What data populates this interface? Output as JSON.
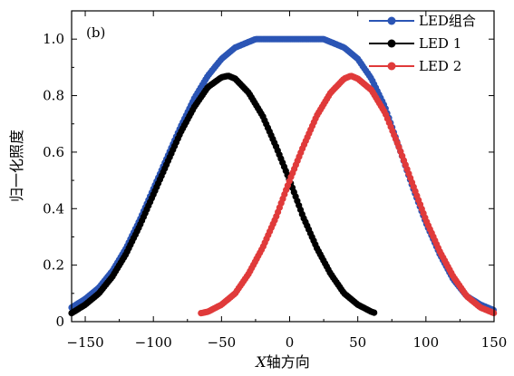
{
  "chart_data": {
    "type": "line",
    "panel_label": "(b)",
    "xlabel_italic": "X",
    "xlabel_rest": "轴方向",
    "ylabel": "归一化照度",
    "xlim": [
      -160,
      150
    ],
    "ylim": [
      0,
      1.1
    ],
    "x_ticks": [
      -150,
      -100,
      -50,
      0,
      50,
      100,
      150
    ],
    "x_tick_labels": [
      "−150",
      "−100",
      "−50",
      "0",
      "50",
      "100",
      "150"
    ],
    "y_ticks": [
      0,
      0.2,
      0.4,
      0.6,
      0.8,
      1.0
    ],
    "y_tick_labels": [
      "0",
      "0.2",
      "0.4",
      "0.6",
      "0.8",
      "1.0"
    ],
    "grid": false,
    "legend_position": "top-right",
    "series": [
      {
        "name": "LED组合",
        "color": "#2b55b5",
        "x": [
          -160,
          -150,
          -140,
          -130,
          -120,
          -110,
          -100,
          -90,
          -80,
          -70,
          -60,
          -50,
          -40,
          -30,
          -25,
          -20,
          -10,
          0,
          10,
          20,
          25,
          30,
          40,
          50,
          60,
          70,
          80,
          90,
          100,
          110,
          120,
          130,
          140,
          150
        ],
        "y": [
          0.05,
          0.08,
          0.12,
          0.18,
          0.26,
          0.36,
          0.47,
          0.58,
          0.69,
          0.79,
          0.87,
          0.93,
          0.97,
          0.99,
          1.0,
          1.0,
          1.0,
          1.0,
          1.0,
          1.0,
          1.0,
          0.99,
          0.97,
          0.93,
          0.86,
          0.76,
          0.62,
          0.48,
          0.35,
          0.24,
          0.15,
          0.09,
          0.06,
          0.04
        ]
      },
      {
        "name": "LED 1",
        "color": "#000000",
        "x": [
          -160,
          -150,
          -140,
          -130,
          -120,
          -110,
          -100,
          -90,
          -80,
          -70,
          -60,
          -50,
          -45,
          -40,
          -30,
          -20,
          -10,
          0,
          10,
          20,
          30,
          40,
          50,
          60,
          63
        ],
        "y": [
          0.03,
          0.06,
          0.1,
          0.16,
          0.24,
          0.34,
          0.45,
          0.56,
          0.67,
          0.76,
          0.83,
          0.865,
          0.87,
          0.86,
          0.81,
          0.73,
          0.62,
          0.5,
          0.37,
          0.26,
          0.17,
          0.1,
          0.06,
          0.035,
          0.03
        ]
      },
      {
        "name": "LED 2",
        "color": "#e03a3a",
        "x": [
          -65,
          -60,
          -50,
          -40,
          -30,
          -20,
          -10,
          0,
          10,
          20,
          30,
          40,
          45,
          50,
          60,
          70,
          80,
          90,
          100,
          110,
          120,
          130,
          140,
          150
        ],
        "y": [
          0.03,
          0.035,
          0.06,
          0.1,
          0.17,
          0.26,
          0.37,
          0.5,
          0.62,
          0.73,
          0.81,
          0.86,
          0.87,
          0.86,
          0.82,
          0.74,
          0.62,
          0.49,
          0.36,
          0.25,
          0.16,
          0.09,
          0.05,
          0.03
        ]
      }
    ]
  }
}
